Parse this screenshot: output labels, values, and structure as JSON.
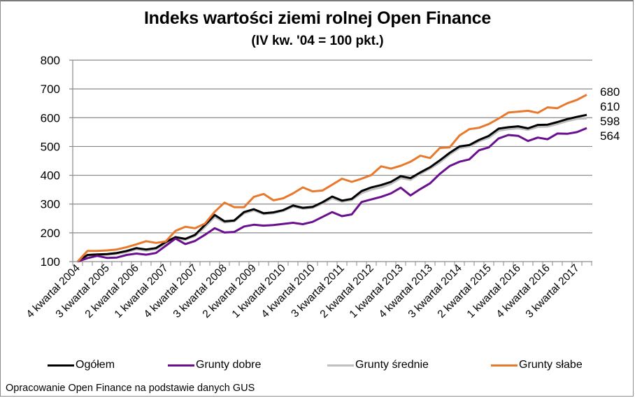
{
  "chart_data": {
    "type": "line",
    "title": "Indeks wartości ziemi rolnej Open Finance",
    "subtitle": "(IV kw. '04 = 100 pkt.)",
    "xlabel": "",
    "ylabel": "",
    "ylim": [
      100,
      800
    ],
    "yticks": [
      100,
      200,
      300,
      400,
      500,
      600,
      700,
      800
    ],
    "grid": true,
    "legend_position": "bottom",
    "x_tick_labels": [
      "4 kwartał 2004",
      "3 kwartał 2005",
      "2 kwartał 2006",
      "1 kwartał 2007",
      "4 kwartał 2007",
      "3 kwartał 2008",
      "2 kwartał 2009",
      "1 kwartał 2010",
      "4 kwartał 2010",
      "3 kwartał 2011",
      "2 kwartał 2012",
      "1 kwartał 2013",
      "4 kwartał 2013",
      "3 kwartał 2014",
      "2 kwartał 2015",
      "1 kwartał 2016",
      "4 kwartał 2016",
      "3 kwartał 2017"
    ],
    "x": [
      "Q4 2004",
      "Q1 2005",
      "Q2 2005",
      "Q3 2005",
      "Q4 2005",
      "Q1 2006",
      "Q2 2006",
      "Q3 2006",
      "Q4 2006",
      "Q1 2007",
      "Q2 2007",
      "Q3 2007",
      "Q4 2007",
      "Q1 2008",
      "Q2 2008",
      "Q3 2008",
      "Q4 2008",
      "Q1 2009",
      "Q2 2009",
      "Q3 2009",
      "Q4 2009",
      "Q1 2010",
      "Q2 2010",
      "Q3 2010",
      "Q4 2010",
      "Q1 2011",
      "Q2 2011",
      "Q3 2011",
      "Q4 2011",
      "Q1 2012",
      "Q2 2012",
      "Q3 2012",
      "Q4 2012",
      "Q1 2013",
      "Q2 2013",
      "Q3 2013",
      "Q4 2013",
      "Q1 2014",
      "Q2 2014",
      "Q3 2014",
      "Q4 2014",
      "Q1 2015",
      "Q2 2015",
      "Q3 2015",
      "Q4 2015",
      "Q1 2016",
      "Q2 2016",
      "Q3 2016",
      "Q4 2016",
      "Q1 2017",
      "Q2 2017",
      "Q3 2017",
      "Q4 2017"
    ],
    "series": [
      {
        "name": "Ogółem",
        "color": "#000000",
        "values": [
          100,
          123,
          125,
          126,
          130,
          137,
          147,
          142,
          147,
          168,
          185,
          179,
          193,
          227,
          262,
          240,
          243,
          272,
          282,
          268,
          271,
          279,
          295,
          287,
          290,
          306,
          326,
          312,
          318,
          345,
          358,
          366,
          377,
          397,
          390,
          410,
          428,
          452,
          478,
          500,
          505,
          523,
          537,
          562,
          567,
          570,
          563,
          575,
          576,
          585,
          595,
          603,
          610
        ]
      },
      {
        "name": "Grunty dobre",
        "color": "#6a0f8e",
        "values": [
          100,
          112,
          120,
          113,
          114,
          123,
          128,
          124,
          130,
          155,
          180,
          161,
          172,
          193,
          216,
          201,
          203,
          222,
          228,
          225,
          227,
          231,
          235,
          230,
          238,
          255,
          272,
          258,
          264,
          307,
          316,
          325,
          337,
          357,
          330,
          352,
          372,
          405,
          432,
          447,
          455,
          487,
          497,
          528,
          540,
          537,
          519,
          531,
          525,
          545,
          544,
          550,
          564
        ]
      },
      {
        "name": "Grunty średnie",
        "color": "#bfbfbf",
        "values": [
          100,
          121,
          122,
          124,
          127,
          133,
          143,
          138,
          143,
          163,
          180,
          176,
          189,
          220,
          255,
          236,
          240,
          268,
          278,
          265,
          268,
          276,
          291,
          284,
          287,
          302,
          320,
          308,
          314,
          338,
          350,
          358,
          370,
          390,
          384,
          405,
          423,
          445,
          472,
          494,
          500,
          518,
          530,
          555,
          560,
          563,
          558,
          568,
          569,
          578,
          588,
          596,
          598
        ]
      },
      {
        "name": "Grunty słabe",
        "color": "#e8792c",
        "values": [
          100,
          137,
          137,
          139,
          142,
          150,
          160,
          171,
          165,
          170,
          207,
          221,
          216,
          232,
          273,
          305,
          289,
          289,
          325,
          335,
          313,
          320,
          337,
          358,
          344,
          347,
          367,
          388,
          377,
          388,
          401,
          431,
          423,
          433,
          447,
          468,
          460,
          495,
          497,
          538,
          560,
          565,
          578,
          597,
          618,
          621,
          624,
          617,
          636,
          633,
          650,
          662,
          680
        ]
      }
    ],
    "end_labels": [
      "680",
      "610",
      "598",
      "564"
    ]
  },
  "chart": {
    "title": "Indeks wartości ziemi rolnej Open Finance",
    "subtitle": "(IV kw. '04 = 100 pkt.)",
    "source": "Opracowanie Open Finance na podstawie danych GUS",
    "legend": [
      {
        "label": "Ogółem",
        "color": "#000000"
      },
      {
        "label": "Grunty dobre",
        "color": "#6a0f8e"
      },
      {
        "label": "Grunty średnie",
        "color": "#bfbfbf"
      },
      {
        "label": "Grunty słabe",
        "color": "#e8792c"
      }
    ]
  }
}
